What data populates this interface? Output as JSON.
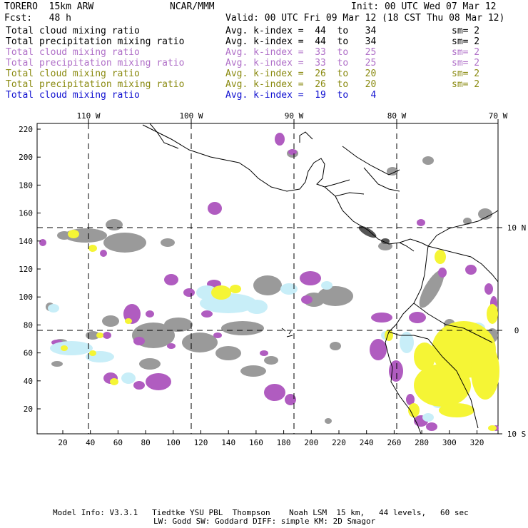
{
  "header": {
    "model": "TORERO  15km ARW",
    "org": "NCAR/MMM",
    "init": "Init: 00 UTC Wed 07 Mar 12",
    "fcst": "Fcst:   48 h",
    "valid": "Valid: 00 UTC Fri 09 Mar 12 (18 CST Thu 08 Mar 12)"
  },
  "legend": [
    {
      "field": "Total cloud mixing ratio",
      "kindex": "Avg. k-index =  44  to   34",
      "sm": "sm= 2",
      "color": "#000000"
    },
    {
      "field": "Total precipitation mixing ratio",
      "kindex": "Avg. k-index =  44  to   34",
      "sm": "sm= 2",
      "color": "#000000"
    },
    {
      "field": "Total cloud mixing ratio",
      "kindex": "Avg. k-index =  33  to   25",
      "sm": "sm= 2",
      "color": "#b070c8"
    },
    {
      "field": "Total precipitation mixing ratio",
      "kindex": "Avg. k-index =  33  to   25",
      "sm": "sm= 2",
      "color": "#b070c8"
    },
    {
      "field": "Total cloud mixing ratio",
      "kindex": "Avg. k-index =  26  to   20",
      "sm": "sm= 2",
      "color": "#8a8a10"
    },
    {
      "field": "Total precipitation mixing ratio",
      "kindex": "Avg. k-index =  26  to   20",
      "sm": "sm= 2",
      "color": "#8a8a10"
    },
    {
      "field": "Total cloud mixing ratio",
      "kindex": "Avg. k-index =  19  to    4",
      "sm": "",
      "color": "#1010d0"
    }
  ],
  "axes": {
    "lon_top": [
      "110 W",
      "100 W",
      "90 W",
      "80 W",
      "70 W"
    ],
    "lat_right": [
      "10 N",
      "0",
      "10 S"
    ],
    "y_left": [
      "220",
      "200",
      "180",
      "160",
      "140",
      "120",
      "100",
      "80",
      "60",
      "40",
      "20"
    ],
    "x_bottom": [
      "20",
      "40",
      "60",
      "80",
      "100",
      "120",
      "140",
      "160",
      "180",
      "200",
      "220",
      "240",
      "260",
      "280",
      "300",
      "320"
    ]
  },
  "footer": {
    "line1": "Model Info: V3.3.1   Tiedtke YSU PBL  Thompson    Noah LSM  15 km,   44 levels,   60 sec",
    "line2": "LW: Godd SW: Goddard DIFF: simple KM: 2D Smagor"
  },
  "colors": {
    "gray": "#9a9a9a",
    "purple": "#b05cc0",
    "yellow": "#f5f535",
    "lightblue": "#c8eef8",
    "darkgray": "#555555"
  }
}
